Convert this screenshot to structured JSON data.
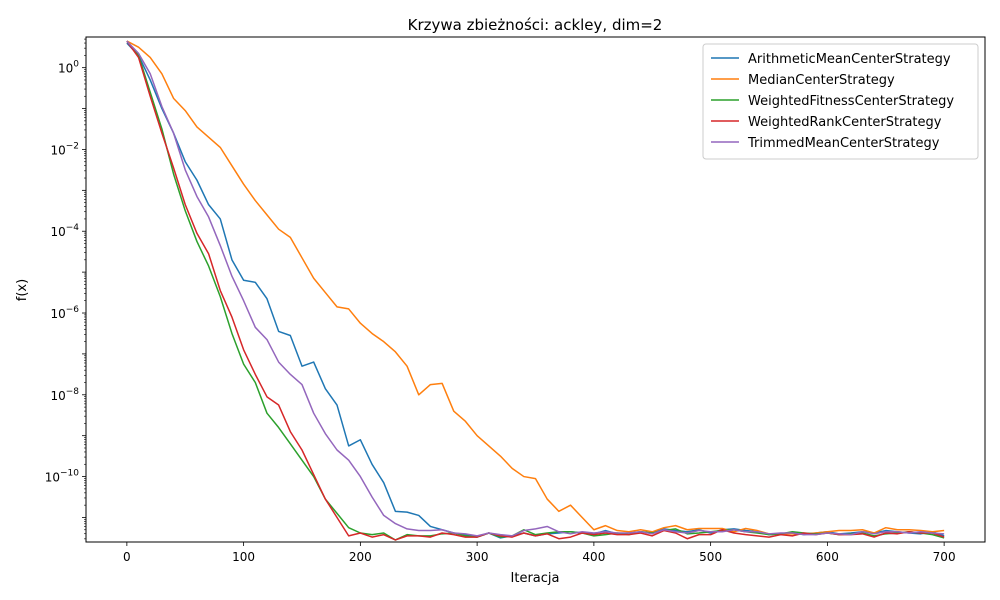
{
  "chart_data": {
    "type": "line",
    "title": "Krzywa zbieżności: ackley, dim=2",
    "xlabel": "Iteracja",
    "ylabel": "f(x)",
    "y_scale": "log",
    "xlim": [
      -35,
      735
    ],
    "ylim_log10": [
      -11.6,
      0.75
    ],
    "x_ticks": [
      0,
      100,
      200,
      300,
      400,
      500,
      600,
      700
    ],
    "y_ticks": [
      {
        "exp": 0,
        "base": "10",
        "power": "0"
      },
      {
        "exp": -2,
        "base": "10",
        "power": "−2"
      },
      {
        "exp": -4,
        "base": "10",
        "power": "−4"
      },
      {
        "exp": -6,
        "base": "10",
        "power": "−6"
      },
      {
        "exp": -8,
        "base": "10",
        "power": "−8"
      },
      {
        "exp": -10,
        "base": "10",
        "power": "−10"
      }
    ],
    "grid": false,
    "legend_position": "top-right",
    "x": [
      0,
      10,
      20,
      30,
      40,
      50,
      60,
      70,
      80,
      90,
      100,
      110,
      120,
      130,
      140,
      150,
      160,
      170,
      180,
      190,
      200,
      210,
      220,
      230,
      240,
      250,
      260,
      270,
      280,
      290,
      300,
      310,
      320,
      330,
      340,
      350,
      360,
      370,
      380,
      390,
      400,
      410,
      420,
      430,
      440,
      450,
      460,
      470,
      480,
      490,
      500,
      510,
      520,
      530,
      540,
      550,
      560,
      570,
      580,
      590,
      600,
      610,
      620,
      630,
      640,
      650,
      660,
      670,
      680,
      690,
      700
    ],
    "series": [
      {
        "name": "ArithmeticMeanCenterStrategy",
        "color": "#1f77b4",
        "log10_values": [
          0.6,
          0.3,
          -0.3,
          -1.0,
          -1.6,
          -2.3,
          -2.75,
          -3.35,
          -3.7,
          -4.7,
          -5.2,
          -5.25,
          -5.65,
          -6.45,
          -6.55,
          -7.3,
          -7.2,
          -7.85,
          -8.25,
          -9.25,
          -9.1,
          -9.7,
          -10.15,
          -10.85,
          -10.87,
          -10.95,
          -11.22,
          -11.3,
          -11.38,
          -11.42,
          -11.48,
          -11.38,
          -11.5,
          -11.45,
          -11.38,
          -11.45,
          -11.4,
          -11.38,
          -11.35,
          -11.38,
          -11.4,
          -11.32,
          -11.4,
          -11.38,
          -11.35,
          -11.38,
          -11.28,
          -11.32,
          -11.35,
          -11.3,
          -11.38,
          -11.3,
          -11.28,
          -11.32,
          -11.35,
          -11.42,
          -11.4,
          -11.38,
          -11.42,
          -11.38,
          -11.35,
          -11.4,
          -11.38,
          -11.35,
          -11.38,
          -11.32,
          -11.35,
          -11.38,
          -11.4,
          -11.35,
          -11.45
        ]
      },
      {
        "name": "MedianCenterStrategy",
        "color": "#ff7f0e",
        "log10_values": [
          0.65,
          0.5,
          0.25,
          -0.15,
          -0.75,
          -1.05,
          -1.45,
          -1.7,
          -1.95,
          -2.4,
          -2.85,
          -3.25,
          -3.6,
          -3.95,
          -4.15,
          -4.65,
          -5.15,
          -5.5,
          -5.85,
          -5.9,
          -6.25,
          -6.5,
          -6.7,
          -6.95,
          -7.3,
          -8.0,
          -7.75,
          -7.72,
          -8.4,
          -8.65,
          -9.0,
          -9.25,
          -9.5,
          -9.8,
          -10.0,
          -10.05,
          -10.55,
          -10.85,
          -10.7,
          -11.0,
          -11.3,
          -11.2,
          -11.32,
          -11.35,
          -11.3,
          -11.35,
          -11.25,
          -11.2,
          -11.3,
          -11.27,
          -11.27,
          -11.27,
          -11.35,
          -11.27,
          -11.32,
          -11.4,
          -11.4,
          -11.4,
          -11.4,
          -11.38,
          -11.35,
          -11.32,
          -11.32,
          -11.3,
          -11.38,
          -11.25,
          -11.3,
          -11.3,
          -11.32,
          -11.35,
          -11.32
        ]
      },
      {
        "name": "WeightedFitnessCenterStrategy",
        "color": "#2ca02c",
        "log10_values": [
          0.65,
          0.3,
          -0.6,
          -1.5,
          -2.6,
          -3.5,
          -4.25,
          -4.85,
          -5.6,
          -6.5,
          -7.25,
          -7.7,
          -8.45,
          -8.8,
          -9.2,
          -9.6,
          -10.0,
          -10.55,
          -10.9,
          -11.25,
          -11.38,
          -11.42,
          -11.38,
          -11.55,
          -11.42,
          -11.45,
          -11.45,
          -11.4,
          -11.38,
          -11.45,
          -11.48,
          -11.38,
          -11.48,
          -11.45,
          -11.3,
          -11.42,
          -11.38,
          -11.35,
          -11.35,
          -11.38,
          -11.45,
          -11.42,
          -11.38,
          -11.42,
          -11.35,
          -11.38,
          -11.32,
          -11.28,
          -11.4,
          -11.38,
          -11.35,
          -11.32,
          -11.3,
          -11.35,
          -11.38,
          -11.42,
          -11.4,
          -11.35,
          -11.38,
          -11.4,
          -11.38,
          -11.42,
          -11.4,
          -11.38,
          -11.45,
          -11.4,
          -11.38,
          -11.35,
          -11.38,
          -11.42,
          -11.5
        ]
      },
      {
        "name": "WeightedRankCenterStrategy",
        "color": "#d62728",
        "log10_values": [
          0.65,
          0.25,
          -0.7,
          -1.6,
          -2.45,
          -3.35,
          -4.05,
          -4.55,
          -5.45,
          -6.1,
          -6.9,
          -7.5,
          -8.05,
          -8.25,
          -8.9,
          -9.35,
          -9.95,
          -10.55,
          -11.0,
          -11.45,
          -11.38,
          -11.48,
          -11.42,
          -11.55,
          -11.45,
          -11.45,
          -11.48,
          -11.38,
          -11.42,
          -11.48,
          -11.48,
          -11.38,
          -11.45,
          -11.48,
          -11.38,
          -11.45,
          -11.4,
          -11.52,
          -11.48,
          -11.38,
          -11.42,
          -11.38,
          -11.42,
          -11.42,
          -11.38,
          -11.45,
          -11.32,
          -11.38,
          -11.52,
          -11.42,
          -11.42,
          -11.3,
          -11.38,
          -11.42,
          -11.45,
          -11.48,
          -11.42,
          -11.45,
          -11.38,
          -11.42,
          -11.38,
          -11.42,
          -11.42,
          -11.4,
          -11.48,
          -11.38,
          -11.4,
          -11.35,
          -11.38,
          -11.38,
          -11.48
        ]
      },
      {
        "name": "TrimmedMeanCenterStrategy",
        "color": "#9467bd",
        "log10_values": [
          0.65,
          0.35,
          -0.15,
          -0.95,
          -1.6,
          -2.5,
          -3.15,
          -3.65,
          -4.35,
          -5.1,
          -5.7,
          -6.35,
          -6.65,
          -7.2,
          -7.5,
          -7.75,
          -8.45,
          -8.95,
          -9.35,
          -9.6,
          -10.0,
          -10.5,
          -10.95,
          -11.15,
          -11.28,
          -11.32,
          -11.32,
          -11.3,
          -11.38,
          -11.4,
          -11.45,
          -11.38,
          -11.42,
          -11.45,
          -11.32,
          -11.28,
          -11.22,
          -11.35,
          -11.4,
          -11.35,
          -11.38,
          -11.35,
          -11.38,
          -11.38,
          -11.35,
          -11.4,
          -11.3,
          -11.35,
          -11.38,
          -11.32,
          -11.35,
          -11.35,
          -11.3,
          -11.35,
          -11.35,
          -11.4,
          -11.38,
          -11.38,
          -11.42,
          -11.42,
          -11.38,
          -11.4,
          -11.42,
          -11.35,
          -11.4,
          -11.35,
          -11.35,
          -11.38,
          -11.35,
          -11.38,
          -11.4
        ]
      }
    ]
  }
}
